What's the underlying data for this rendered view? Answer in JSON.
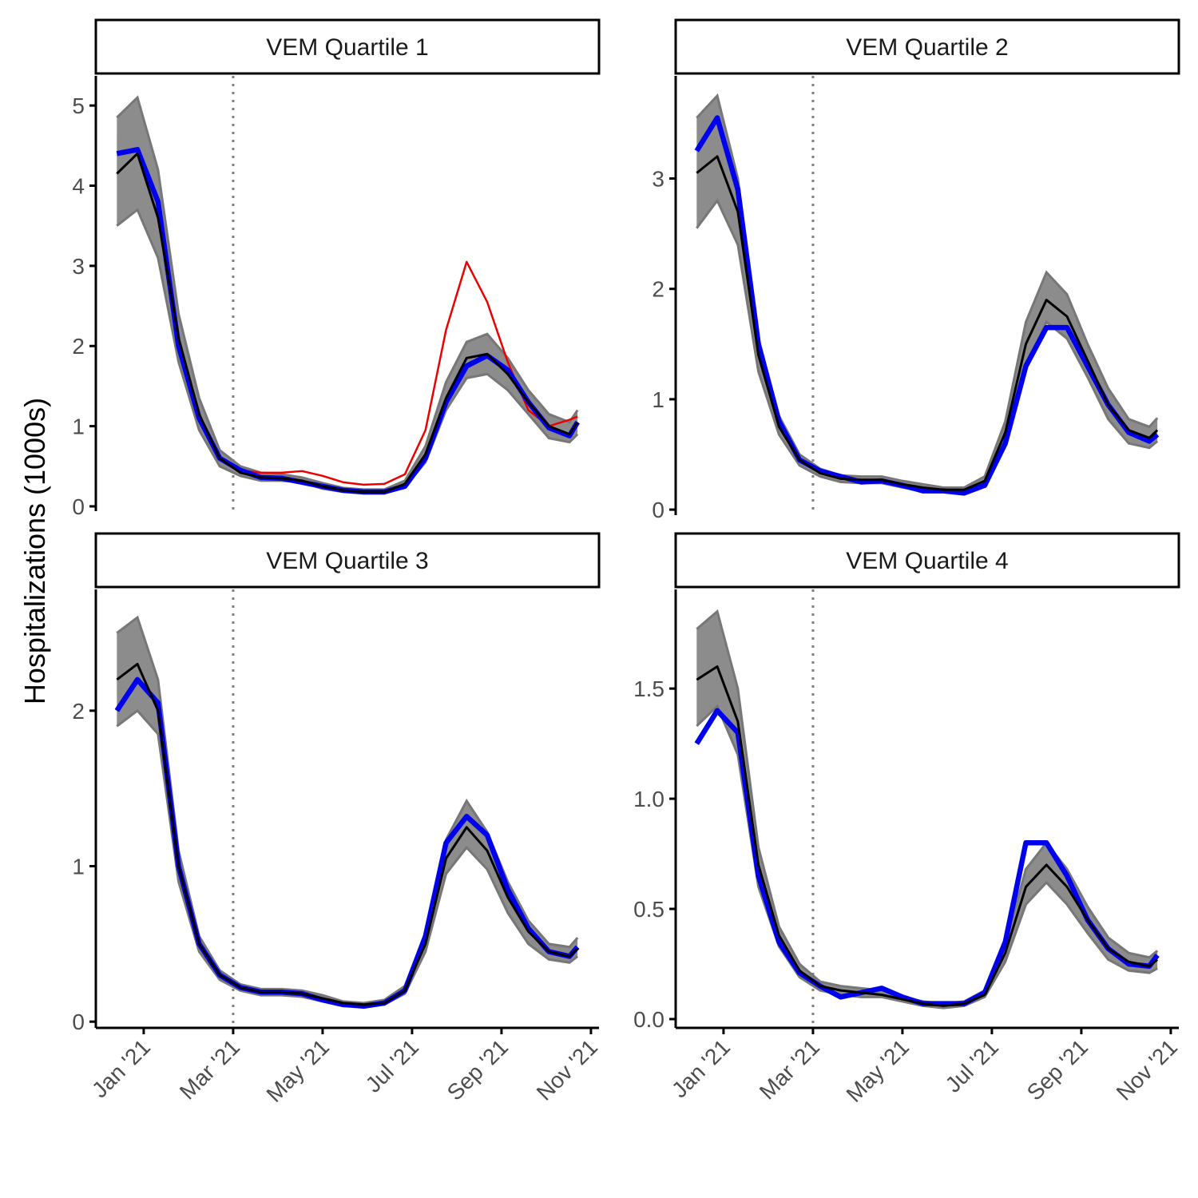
{
  "y_label": "Hospitalizations (1000s)",
  "chart_data": [
    {
      "type": "line",
      "title": "VEM Quartile 1",
      "x": [
        -0.6,
        -0.14,
        0.32,
        0.78,
        1.24,
        1.7,
        2.16,
        2.62,
        3.08,
        3.54,
        4.0,
        4.46,
        4.92,
        5.38,
        5.84,
        6.3,
        6.76,
        7.22,
        7.68,
        8.14,
        8.6,
        9.06,
        9.52,
        9.7
      ],
      "xlim": [
        -1.07,
        10.18
      ],
      "ylim": [
        -0.06,
        5.37
      ],
      "yticks": [
        0,
        1,
        2,
        3,
        4,
        5
      ],
      "vline": 2,
      "band": {
        "color": "#8c8c8c",
        "lower": [
          3.5,
          3.7,
          3.1,
          1.8,
          0.95,
          0.5,
          0.38,
          0.32,
          0.32,
          0.3,
          0.22,
          0.18,
          0.16,
          0.16,
          0.24,
          0.55,
          1.2,
          1.6,
          1.65,
          1.45,
          1.15,
          0.85,
          0.8,
          0.9
        ],
        "upper": [
          4.85,
          5.1,
          4.2,
          2.4,
          1.35,
          0.7,
          0.5,
          0.42,
          0.4,
          0.36,
          0.29,
          0.23,
          0.21,
          0.21,
          0.32,
          0.75,
          1.55,
          2.05,
          2.15,
          1.85,
          1.45,
          1.15,
          1.05,
          1.2
        ]
      },
      "series": [
        {
          "color": "#ee0000",
          "values": [
            null,
            null,
            null,
            null,
            null,
            null,
            0.45,
            0.42,
            0.42,
            0.44,
            0.38,
            0.3,
            0.27,
            0.28,
            0.4,
            0.95,
            2.2,
            3.05,
            2.55,
            1.8,
            1.2,
            1.0,
            1.08,
            1.12
          ]
        },
        {
          "color": "#0000ee",
          "values": [
            4.4,
            4.45,
            3.8,
            2.0,
            1.1,
            0.6,
            0.45,
            0.36,
            0.35,
            0.3,
            0.25,
            0.2,
            0.18,
            0.18,
            0.25,
            0.6,
            1.3,
            1.75,
            1.88,
            1.7,
            1.3,
            0.98,
            0.88,
            1.05
          ]
        },
        {
          "color": "#000000",
          "values": [
            4.15,
            4.4,
            3.6,
            2.1,
            1.15,
            0.6,
            0.42,
            0.36,
            0.35,
            0.32,
            0.25,
            0.2,
            0.18,
            0.18,
            0.28,
            0.65,
            1.35,
            1.85,
            1.9,
            1.65,
            1.3,
            1.0,
            0.9,
            1.05
          ]
        }
      ]
    },
    {
      "type": "line",
      "title": "VEM Quartile 2",
      "x": [
        -0.6,
        -0.14,
        0.32,
        0.78,
        1.24,
        1.7,
        2.16,
        2.62,
        3.08,
        3.54,
        4.0,
        4.46,
        4.92,
        5.38,
        5.84,
        6.3,
        6.76,
        7.22,
        7.68,
        8.14,
        8.6,
        9.06,
        9.52,
        9.7
      ],
      "xlim": [
        -1.07,
        10.18
      ],
      "ylim": [
        -0.05,
        3.93
      ],
      "yticks": [
        0,
        1,
        2,
        3
      ],
      "vline": 2,
      "band": {
        "color": "#8c8c8c",
        "lower": [
          2.55,
          2.8,
          2.4,
          1.25,
          0.68,
          0.4,
          0.3,
          0.25,
          0.24,
          0.24,
          0.2,
          0.17,
          0.16,
          0.16,
          0.23,
          0.6,
          1.3,
          1.7,
          1.55,
          1.2,
          0.82,
          0.6,
          0.56,
          0.62
        ],
        "upper": [
          3.55,
          3.75,
          3.0,
          1.55,
          0.85,
          0.5,
          0.37,
          0.31,
          0.3,
          0.3,
          0.26,
          0.23,
          0.2,
          0.2,
          0.3,
          0.8,
          1.7,
          2.15,
          1.95,
          1.5,
          1.1,
          0.82,
          0.75,
          0.83
        ]
      },
      "series": [
        {
          "color": "#0000ee",
          "values": [
            3.25,
            3.55,
            2.9,
            1.5,
            0.8,
            0.45,
            0.35,
            0.3,
            0.25,
            0.26,
            0.22,
            0.17,
            0.17,
            0.15,
            0.22,
            0.6,
            1.3,
            1.65,
            1.65,
            1.3,
            0.95,
            0.7,
            0.62,
            0.68
          ]
        },
        {
          "color": "#000000",
          "values": [
            3.05,
            3.2,
            2.7,
            1.4,
            0.75,
            0.45,
            0.33,
            0.28,
            0.27,
            0.27,
            0.23,
            0.2,
            0.18,
            0.18,
            0.26,
            0.7,
            1.5,
            1.9,
            1.75,
            1.35,
            0.95,
            0.72,
            0.65,
            0.72
          ]
        }
      ]
    },
    {
      "type": "line",
      "title": "VEM Quartile 3",
      "x": [
        -0.6,
        -0.14,
        0.32,
        0.78,
        1.24,
        1.7,
        2.16,
        2.62,
        3.08,
        3.54,
        4.0,
        4.46,
        4.92,
        5.38,
        5.84,
        6.3,
        6.76,
        7.22,
        7.68,
        8.14,
        8.6,
        9.06,
        9.52,
        9.7
      ],
      "xlim": [
        -1.07,
        10.18
      ],
      "ylim": [
        -0.04,
        2.78
      ],
      "yticks": [
        0,
        1,
        2
      ],
      "vline": 2,
      "xticks": [
        {
          "value": 0,
          "label": "Jan '21"
        },
        {
          "value": 2,
          "label": "Mar '21"
        },
        {
          "value": 4,
          "label": "May '21"
        },
        {
          "value": 6,
          "label": "Jul '21"
        },
        {
          "value": 8,
          "label": "Sep '21"
        },
        {
          "value": 10,
          "label": "Nov '21"
        }
      ],
      "band": {
        "color": "#8c8c8c",
        "lower": [
          1.9,
          2.0,
          1.85,
          0.9,
          0.45,
          0.27,
          0.2,
          0.17,
          0.17,
          0.16,
          0.13,
          0.1,
          0.1,
          0.11,
          0.18,
          0.45,
          0.95,
          1.12,
          0.98,
          0.7,
          0.5,
          0.4,
          0.38,
          0.42
        ],
        "upper": [
          2.5,
          2.6,
          2.2,
          1.1,
          0.55,
          0.33,
          0.24,
          0.21,
          0.21,
          0.2,
          0.17,
          0.13,
          0.12,
          0.14,
          0.23,
          0.57,
          1.17,
          1.42,
          1.22,
          0.9,
          0.65,
          0.5,
          0.48,
          0.54
        ]
      },
      "series": [
        {
          "color": "#0000ee",
          "values": [
            2.0,
            2.2,
            2.05,
            1.0,
            0.5,
            0.3,
            0.22,
            0.19,
            0.19,
            0.18,
            0.14,
            0.11,
            0.1,
            0.12,
            0.2,
            0.55,
            1.15,
            1.32,
            1.2,
            0.85,
            0.6,
            0.45,
            0.42,
            0.48
          ]
        },
        {
          "color": "#000000",
          "values": [
            2.2,
            2.3,
            2.0,
            1.0,
            0.5,
            0.3,
            0.22,
            0.19,
            0.19,
            0.18,
            0.15,
            0.12,
            0.11,
            0.12,
            0.2,
            0.5,
            1.05,
            1.25,
            1.1,
            0.8,
            0.58,
            0.45,
            0.42,
            0.47
          ]
        }
      ]
    },
    {
      "type": "line",
      "title": "VEM Quartile 4",
      "x": [
        -0.6,
        -0.14,
        0.32,
        0.78,
        1.24,
        1.7,
        2.16,
        2.62,
        3.08,
        3.54,
        4.0,
        4.46,
        4.92,
        5.38,
        5.84,
        6.3,
        6.76,
        7.22,
        7.68,
        8.14,
        8.6,
        9.06,
        9.52,
        9.7
      ],
      "xlim": [
        -1.07,
        10.18
      ],
      "ylim": [
        -0.04,
        1.95
      ],
      "yticks": [
        {
          "value": 0,
          "label": "0.0"
        },
        {
          "value": 0.5,
          "label": "0.5"
        },
        {
          "value": 1,
          "label": "1.0"
        },
        {
          "value": 1.5,
          "label": "1.5"
        }
      ],
      "vline": 2,
      "xticks": [
        {
          "value": 0,
          "label": "Jan '21"
        },
        {
          "value": 2,
          "label": "Mar '21"
        },
        {
          "value": 4,
          "label": "May '21"
        },
        {
          "value": 6,
          "label": "Jul '21"
        },
        {
          "value": 8,
          "label": "Sep '21"
        },
        {
          "value": 10,
          "label": "Nov '21"
        }
      ],
      "band": {
        "color": "#8c8c8c",
        "lower": [
          1.33,
          1.42,
          1.2,
          0.6,
          0.33,
          0.19,
          0.13,
          0.11,
          0.1,
          0.1,
          0.08,
          0.06,
          0.05,
          0.06,
          0.1,
          0.26,
          0.52,
          0.62,
          0.52,
          0.39,
          0.27,
          0.22,
          0.21,
          0.23
        ],
        "upper": [
          1.77,
          1.85,
          1.5,
          0.78,
          0.42,
          0.25,
          0.17,
          0.15,
          0.14,
          0.13,
          0.1,
          0.08,
          0.07,
          0.08,
          0.13,
          0.34,
          0.68,
          0.8,
          0.68,
          0.51,
          0.37,
          0.3,
          0.28,
          0.31
        ]
      },
      "series": [
        {
          "color": "#0000ee",
          "values": [
            1.25,
            1.4,
            1.3,
            0.65,
            0.35,
            0.21,
            0.15,
            0.1,
            0.12,
            0.14,
            0.1,
            0.07,
            0.07,
            0.07,
            0.12,
            0.35,
            0.8,
            0.8,
            0.65,
            0.45,
            0.32,
            0.25,
            0.24,
            0.29
          ]
        },
        {
          "color": "#000000",
          "values": [
            1.54,
            1.6,
            1.35,
            0.7,
            0.38,
            0.22,
            0.15,
            0.13,
            0.12,
            0.11,
            0.09,
            0.07,
            0.06,
            0.07,
            0.11,
            0.3,
            0.6,
            0.7,
            0.6,
            0.45,
            0.32,
            0.26,
            0.24,
            0.27
          ]
        }
      ]
    }
  ]
}
